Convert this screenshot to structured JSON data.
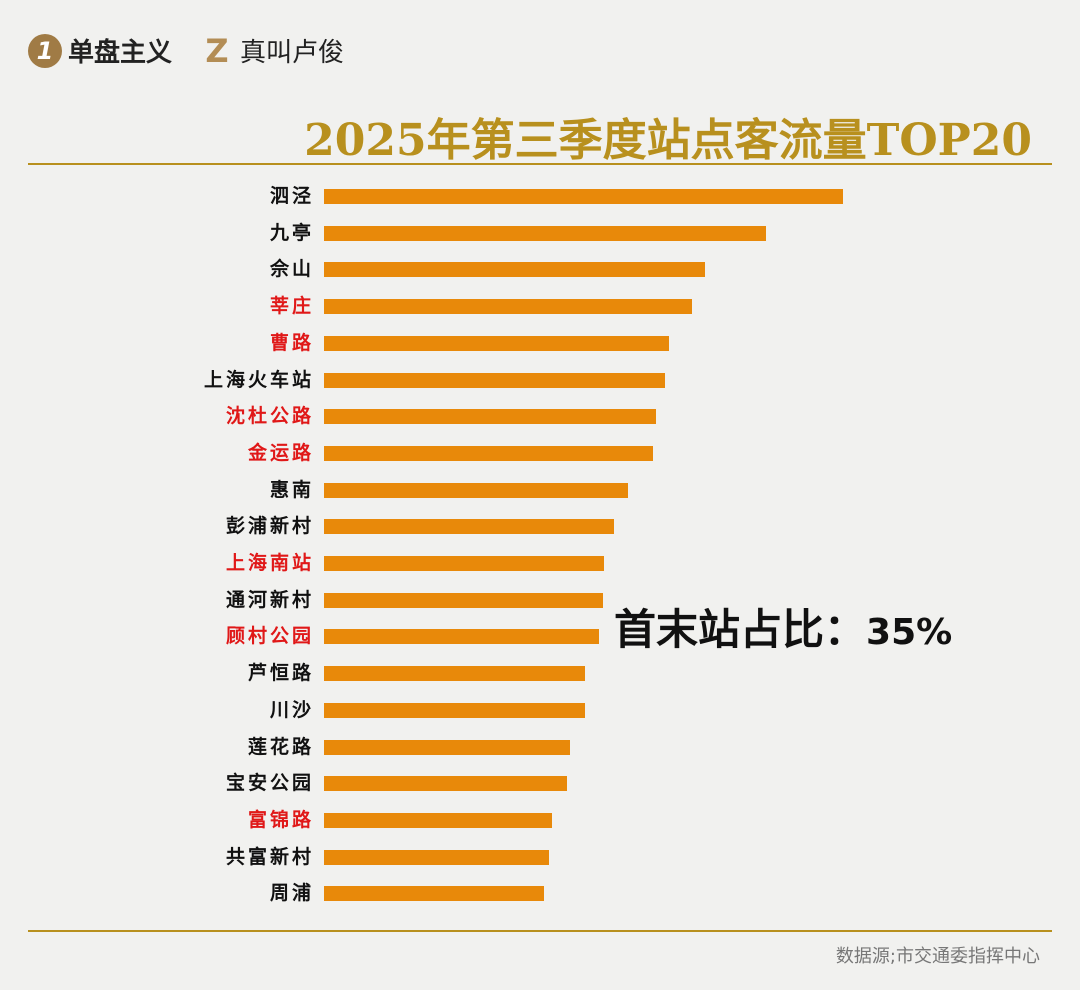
{
  "brand": {
    "logo1_text": "1",
    "name1": "单盘主义",
    "logo2_text": "Z",
    "name2": "真叫卢俊",
    "accent": "#b8901e"
  },
  "chart_data": {
    "type": "bar",
    "orientation": "horizontal",
    "title": "2025年第三季度站点客流量TOP20",
    "value_note": "relative bar length, % of top bar (no axis printed)",
    "categories": [
      "泗泾",
      "九亭",
      "佘山",
      "莘庄",
      "曹路",
      "上海火车站",
      "沈杜公路",
      "金运路",
      "惠南",
      "彭浦新村",
      "上海南站",
      "通河新村",
      "顾村公园",
      "芦恒路",
      "川沙",
      "莲花路",
      "宝安公园",
      "富锦路",
      "共富新村",
      "周浦"
    ],
    "values": [
      100,
      85.2,
      73.4,
      70.9,
      66.5,
      65.7,
      63.9,
      63.4,
      58.6,
      55.9,
      54.0,
      53.8,
      53.0,
      50.3,
      50.3,
      47.4,
      46.8,
      43.9,
      43.4,
      42.4
    ],
    "highlighted": [
      "莘庄",
      "曹路",
      "沈杜公路",
      "金运路",
      "上海南站",
      "顾村公园",
      "富锦路"
    ],
    "bar_color": "#e8890a",
    "highlight_label_color": "#e01818",
    "annotation": {
      "label": "首末站占比：",
      "value": "35%"
    },
    "grid": false
  },
  "footer": {
    "source": "数据源;市交通委指挥中心"
  }
}
